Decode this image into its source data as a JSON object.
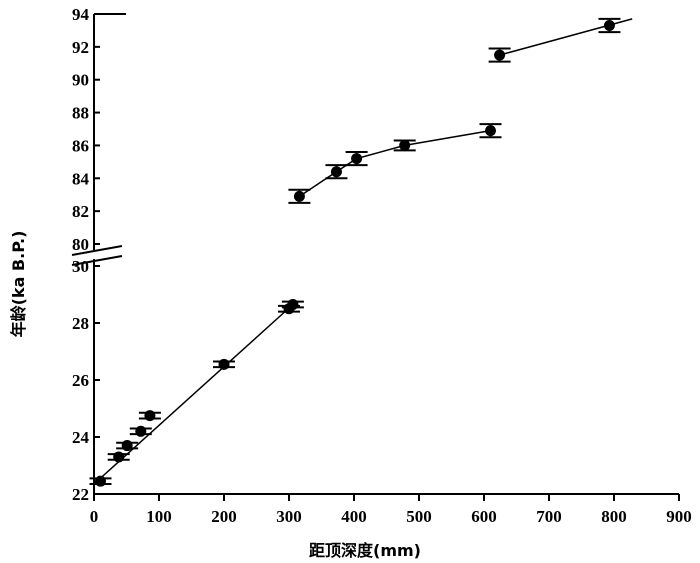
{
  "chart_data": {
    "type": "scatter",
    "title": "",
    "xlabel": "距顶深度(mm)",
    "ylabel": "年龄(ka B.P.)",
    "xlim": [
      0,
      900
    ],
    "x_ticks": [
      0,
      100,
      200,
      300,
      400,
      500,
      600,
      700,
      800,
      900
    ],
    "y_axis_break": true,
    "y_lower": {
      "ylim": [
        22,
        30
      ],
      "ticks": [
        22,
        24,
        26,
        28,
        30
      ]
    },
    "y_upper": {
      "ylim": [
        80,
        94
      ],
      "ticks": [
        80,
        82,
        84,
        86,
        88,
        90,
        92,
        94
      ]
    },
    "grid": false,
    "legend": "none",
    "segments": [
      {
        "points": [
          {
            "x": 10,
            "y": 22.45,
            "err": 0.1
          },
          {
            "x": 38,
            "y": 23.3,
            "err": 0.1
          },
          {
            "x": 51,
            "y": 23.7,
            "err": 0.1
          },
          {
            "x": 72,
            "y": 24.2,
            "err": 0.1
          },
          {
            "x": 86,
            "y": 24.75,
            "err": 0.1
          },
          {
            "x": 200,
            "y": 26.55,
            "err": 0.1
          },
          {
            "x": 300,
            "y": 28.5,
            "err": 0.1
          },
          {
            "x": 306,
            "y": 28.65,
            "err": 0.1
          }
        ],
        "line": [
          [
            0,
            22.35
          ],
          [
            306,
            28.65
          ]
        ]
      },
      {
        "points": [
          {
            "x": 316,
            "y": 82.9,
            "err": 0.4
          },
          {
            "x": 373,
            "y": 84.4,
            "err": 0.4
          },
          {
            "x": 404,
            "y": 85.2,
            "err": 0.4
          },
          {
            "x": 478,
            "y": 86.0,
            "err": 0.3
          },
          {
            "x": 610,
            "y": 86.9,
            "err": 0.4
          }
        ],
        "line": [
          [
            316,
            82.9
          ],
          [
            373,
            84.4
          ],
          [
            404,
            85.2
          ],
          [
            478,
            86.0
          ],
          [
            610,
            86.9
          ]
        ]
      },
      {
        "points": [
          {
            "x": 624,
            "y": 91.5,
            "err": 0.4
          },
          {
            "x": 793,
            "y": 93.3,
            "err": 0.4
          }
        ],
        "line": [
          [
            624,
            91.5
          ],
          [
            828,
            93.7
          ]
        ]
      }
    ]
  }
}
